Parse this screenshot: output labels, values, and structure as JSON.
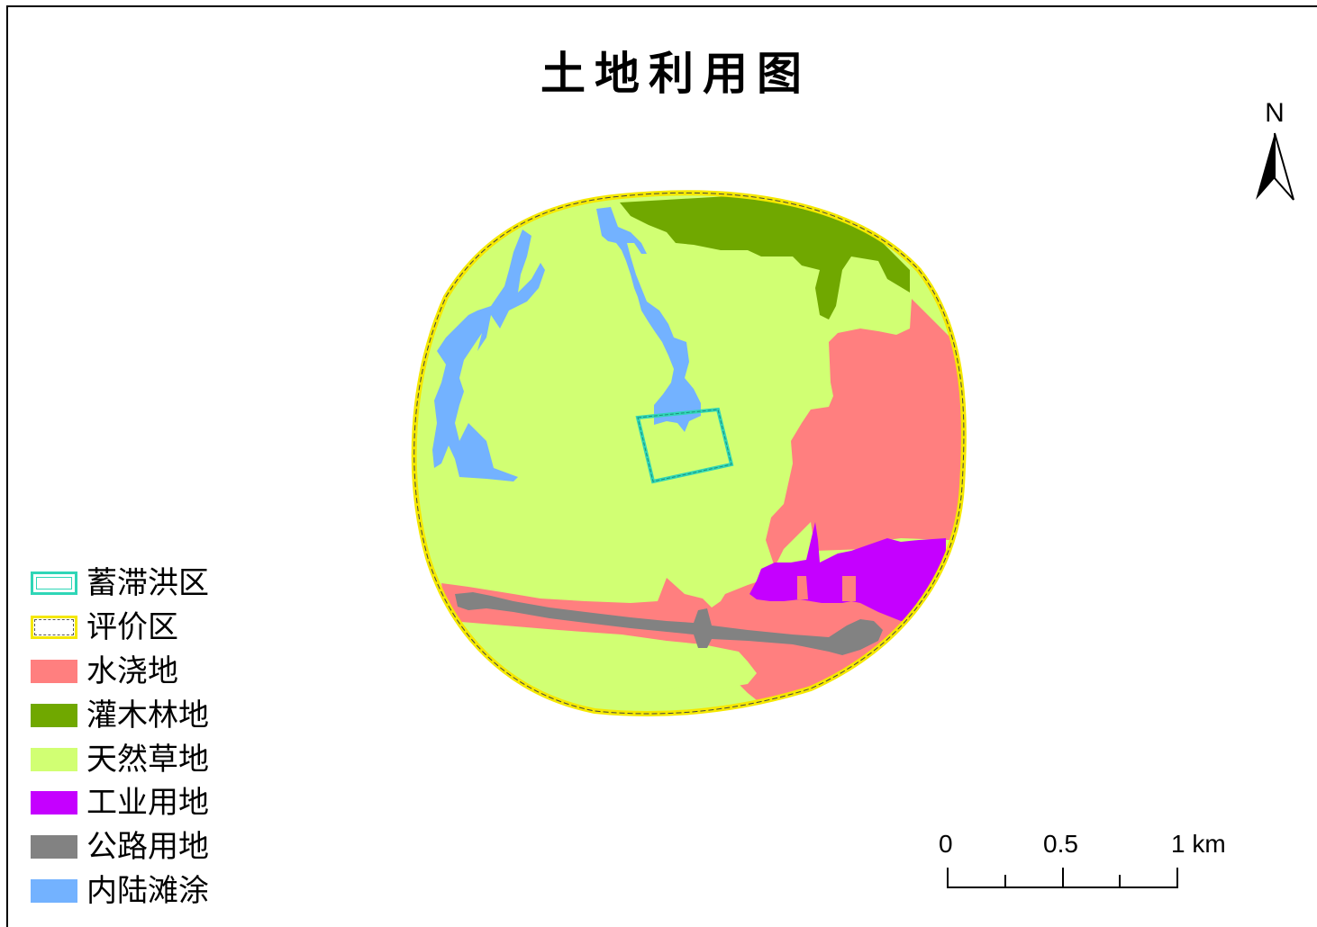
{
  "title": "土地利用图",
  "north_label": "N",
  "legend": [
    {
      "label": "蓄滞洪区",
      "kind": "outline",
      "color": "#2fd6b7"
    },
    {
      "label": "评价区",
      "kind": "outline-dashed",
      "color": "#f5e800"
    },
    {
      "label": "水浇地",
      "kind": "fill",
      "color": "#ff7f7f"
    },
    {
      "label": "灌木林地",
      "kind": "fill",
      "color": "#70a800"
    },
    {
      "label": "天然草地",
      "kind": "fill",
      "color": "#d1ff73"
    },
    {
      "label": "工业用地",
      "kind": "fill",
      "color": "#c500ff"
    },
    {
      "label": "公路用地",
      "kind": "fill",
      "color": "#828282"
    },
    {
      "label": "内陆滩涂",
      "kind": "fill",
      "color": "#73b2ff"
    }
  ],
  "scalebar": {
    "labels": [
      "0",
      "0.5",
      "1 km"
    ],
    "unit": "km"
  },
  "colors": {
    "irrigated": "#ff7f7f",
    "shrub": "#70a800",
    "grassland": "#d1ff73",
    "industrial": "#c500ff",
    "road": "#828282",
    "tidal": "#73b2ff",
    "flood_outline": "#2fd6b7",
    "eval_outline": "#f5e800"
  }
}
